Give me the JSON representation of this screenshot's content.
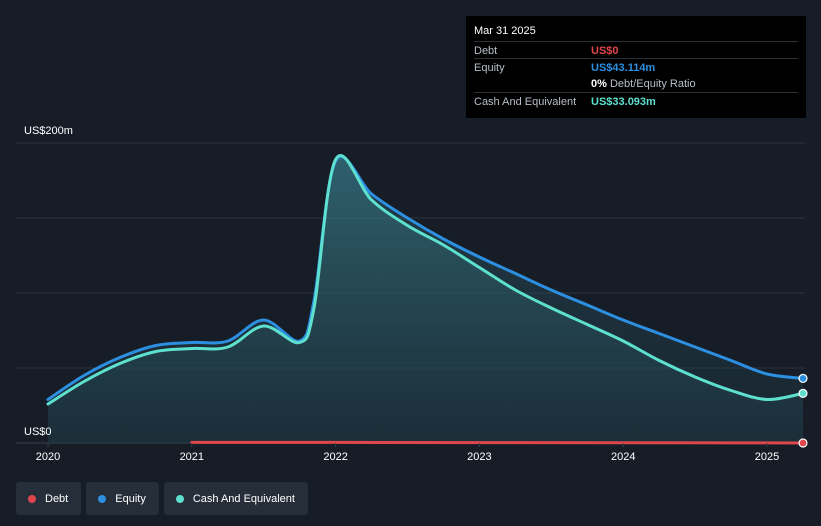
{
  "chart_data": {
    "type": "area",
    "y_axis_labels": {
      "top": "US$200m",
      "bottom": "US$0"
    },
    "ylim": [
      0,
      200
    ],
    "x_ticks": [
      "2020",
      "2021",
      "2022",
      "2023",
      "2024",
      "2025"
    ],
    "grid": true,
    "series": [
      {
        "name": "Debt",
        "color": "#e0474c",
        "x": [
          2021.0,
          2022.0,
          2023.0,
          2024.0,
          2025.0,
          2025.25
        ],
        "values": [
          0.4,
          0.4,
          0.3,
          0.2,
          0.1,
          0
        ]
      },
      {
        "name": "Equity",
        "color": "#2d8fe0",
        "x": [
          2020.0,
          2020.25,
          2020.5,
          2020.75,
          2021.0,
          2021.25,
          2021.5,
          2021.75,
          2021.85,
          2022.0,
          2022.25,
          2022.5,
          2022.75,
          2023.0,
          2023.25,
          2023.5,
          2023.75,
          2024.0,
          2024.25,
          2024.5,
          2024.75,
          2025.0,
          2025.25
        ],
        "values": [
          29,
          45,
          57,
          65,
          67,
          68,
          82,
          68,
          95,
          188,
          166,
          150,
          136,
          124,
          113,
          102,
          92,
          82,
          73,
          64,
          55,
          46,
          43.1
        ]
      },
      {
        "name": "Cash And Equivalent",
        "color": "#5ee0cf",
        "x": [
          2020.0,
          2020.25,
          2020.5,
          2020.75,
          2021.0,
          2021.25,
          2021.5,
          2021.75,
          2021.85,
          2022.0,
          2022.25,
          2022.5,
          2022.75,
          2023.0,
          2023.25,
          2023.5,
          2023.75,
          2024.0,
          2024.25,
          2024.5,
          2024.75,
          2025.0,
          2025.25
        ],
        "values": [
          26,
          41,
          53,
          61,
          63,
          64,
          78,
          67,
          90,
          189,
          162,
          145,
          132,
          117,
          102,
          90,
          79,
          68,
          55,
          44,
          35,
          29,
          33.1
        ]
      }
    ]
  },
  "tooltip": {
    "date": "Mar 31 2025",
    "rows": [
      {
        "label": "Debt",
        "value": "US$0",
        "color": "#e0474c"
      },
      {
        "label": "Equity",
        "value": "US$43.114m",
        "color": "#2d8fe0"
      },
      {
        "ratio_value": "0%",
        "ratio_text": " Debt/Equity Ratio"
      },
      {
        "label": "Cash And Equivalent",
        "value": "US$33.093m",
        "color": "#5ee0cf"
      }
    ]
  },
  "legend": [
    {
      "label": "Debt",
      "color": "#e0474c"
    },
    {
      "label": "Equity",
      "color": "#2d8fe0"
    },
    {
      "label": "Cash And Equivalent",
      "color": "#5ee0cf"
    }
  ]
}
